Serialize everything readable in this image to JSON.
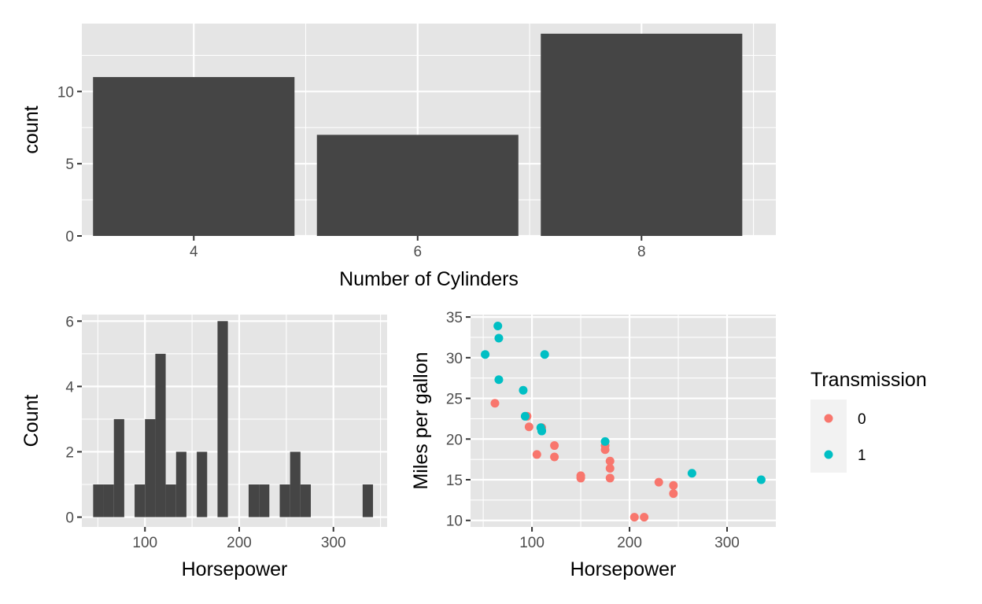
{
  "chart_data": [
    {
      "id": "cyl",
      "type": "bar",
      "categories": [
        "4",
        "6",
        "8"
      ],
      "values": [
        11,
        7,
        14
      ],
      "xlabel": "Number of Cylinders",
      "ylabel": "count",
      "xlim": [
        3,
        9.2
      ],
      "ylim": [
        0,
        14.7
      ],
      "xticks": [
        4,
        6,
        8
      ],
      "yticks": [
        0,
        5,
        10
      ],
      "bar_color": "#454545",
      "grid": true
    },
    {
      "id": "hist",
      "type": "bar",
      "bins": [
        {
          "x0": 45,
          "x1": 56,
          "count": 1
        },
        {
          "x0": 56,
          "x1": 67,
          "count": 1
        },
        {
          "x0": 67,
          "x1": 78,
          "count": 3
        },
        {
          "x0": 78,
          "x1": 89,
          "count": 0
        },
        {
          "x0": 89,
          "x1": 100,
          "count": 1
        },
        {
          "x0": 100,
          "x1": 111,
          "count": 3
        },
        {
          "x0": 111,
          "x1": 122,
          "count": 5
        },
        {
          "x0": 122,
          "x1": 133,
          "count": 1
        },
        {
          "x0": 133,
          "x1": 144,
          "count": 2
        },
        {
          "x0": 144,
          "x1": 155,
          "count": 0
        },
        {
          "x0": 155,
          "x1": 166,
          "count": 2
        },
        {
          "x0": 166,
          "x1": 177,
          "count": 0
        },
        {
          "x0": 177,
          "x1": 188,
          "count": 6
        },
        {
          "x0": 188,
          "x1": 199,
          "count": 0
        },
        {
          "x0": 199,
          "x1": 210,
          "count": 0
        },
        {
          "x0": 210,
          "x1": 221,
          "count": 1
        },
        {
          "x0": 221,
          "x1": 232,
          "count": 1
        },
        {
          "x0": 232,
          "x1": 243,
          "count": 0
        },
        {
          "x0": 243,
          "x1": 254,
          "count": 1
        },
        {
          "x0": 254,
          "x1": 265,
          "count": 2
        },
        {
          "x0": 265,
          "x1": 276,
          "count": 1
        },
        {
          "x0": 276,
          "x1": 287,
          "count": 0
        },
        {
          "x0": 287,
          "x1": 298,
          "count": 0
        },
        {
          "x0": 298,
          "x1": 309,
          "count": 0
        },
        {
          "x0": 309,
          "x1": 320,
          "count": 0
        },
        {
          "x0": 320,
          "x1": 331,
          "count": 0
        },
        {
          "x0": 331,
          "x1": 342,
          "count": 1
        }
      ],
      "xlabel": "Horsepower",
      "ylabel": "Count",
      "xlim": [
        33,
        357
      ],
      "ylim": [
        -0.3,
        6.2
      ],
      "xticks": [
        100,
        200,
        300
      ],
      "yticks": [
        0,
        2,
        4,
        6
      ],
      "bar_color": "#454545",
      "grid": true
    },
    {
      "id": "scatter",
      "type": "scatter",
      "xlabel": "Horsepower",
      "ylabel": "Miles per gallon",
      "xlim": [
        37,
        350
      ],
      "ylim": [
        9.2,
        35.3
      ],
      "xticks": [
        100,
        200,
        300
      ],
      "yticks": [
        10,
        15,
        20,
        25,
        30,
        35
      ],
      "grid": true,
      "legend": {
        "title": "Transmission",
        "position": "right",
        "entries": [
          {
            "label": "0",
            "color": "#f8766d"
          },
          {
            "label": "1",
            "color": "#00bfc4"
          }
        ]
      },
      "series": [
        {
          "key": "0",
          "color": "#f8766d",
          "points": [
            [
              62,
              24.4
            ],
            [
              95,
              22.8
            ],
            [
              97,
              21.5
            ],
            [
              105,
              18.1
            ],
            [
              110,
              21.4
            ],
            [
              123,
              19.2
            ],
            [
              123,
              17.8
            ],
            [
              150,
              15.5
            ],
            [
              150,
              15.2
            ],
            [
              175,
              18.7
            ],
            [
              175,
              19.2
            ],
            [
              180,
              16.4
            ],
            [
              180,
              17.3
            ],
            [
              180,
              15.2
            ],
            [
              205,
              10.4
            ],
            [
              215,
              10.4
            ],
            [
              230,
              14.7
            ],
            [
              245,
              14.3
            ],
            [
              245,
              13.3
            ]
          ]
        },
        {
          "key": "1",
          "color": "#00bfc4",
          "points": [
            [
              52,
              30.4
            ],
            [
              65,
              33.9
            ],
            [
              66,
              32.4
            ],
            [
              66,
              27.3
            ],
            [
              91,
              26.0
            ],
            [
              93,
              22.8
            ],
            [
              109,
              21.4
            ],
            [
              110,
              21.0
            ],
            [
              110,
              21.0
            ],
            [
              113,
              30.4
            ],
            [
              175,
              19.7
            ],
            [
              264,
              15.8
            ],
            [
              335,
              15.0
            ]
          ]
        }
      ]
    }
  ]
}
